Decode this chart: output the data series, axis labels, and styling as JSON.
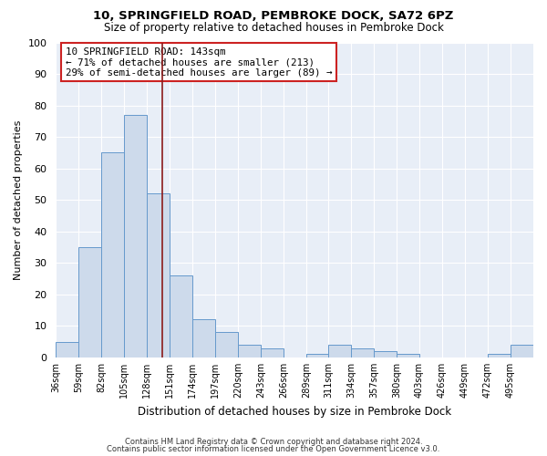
{
  "title": "10, SPRINGFIELD ROAD, PEMBROKE DOCK, SA72 6PZ",
  "subtitle": "Size of property relative to detached houses in Pembroke Dock",
  "xlabel": "Distribution of detached houses by size in Pembroke Dock",
  "ylabel": "Number of detached properties",
  "bin_labels": [
    "36sqm",
    "59sqm",
    "82sqm",
    "105sqm",
    "128sqm",
    "151sqm",
    "174sqm",
    "197sqm",
    "220sqm",
    "243sqm",
    "266sqm",
    "289sqm",
    "311sqm",
    "334sqm",
    "357sqm",
    "380sqm",
    "403sqm",
    "426sqm",
    "449sqm",
    "472sqm",
    "495sqm"
  ],
  "bin_edges": [
    36,
    59,
    82,
    105,
    128,
    151,
    174,
    197,
    220,
    243,
    266,
    289,
    311,
    334,
    357,
    380,
    403,
    426,
    449,
    472,
    495,
    518
  ],
  "bar_values": [
    5,
    35,
    65,
    77,
    52,
    26,
    12,
    8,
    4,
    3,
    0,
    1,
    4,
    3,
    2,
    1,
    0,
    0,
    0,
    1,
    4
  ],
  "bar_color": "#cddaeb",
  "bar_edge_color": "#6699cc",
  "vline_x": 143,
  "vline_color": "#8b1a1a",
  "annotation_box_color": "#cc2222",
  "annotation_line1": "10 SPRINGFIELD ROAD: 143sqm",
  "annotation_line2": "← 71% of detached houses are smaller (213)",
  "annotation_line3": "29% of semi-detached houses are larger (89) →",
  "ylim": [
    0,
    100
  ],
  "yticks": [
    0,
    10,
    20,
    30,
    40,
    50,
    60,
    70,
    80,
    90,
    100
  ],
  "bg_color": "#ffffff",
  "plot_bg_color": "#e8eef7",
  "grid_color": "#ffffff",
  "footer_line1": "Contains HM Land Registry data © Crown copyright and database right 2024.",
  "footer_line2": "Contains public sector information licensed under the Open Government Licence v3.0."
}
